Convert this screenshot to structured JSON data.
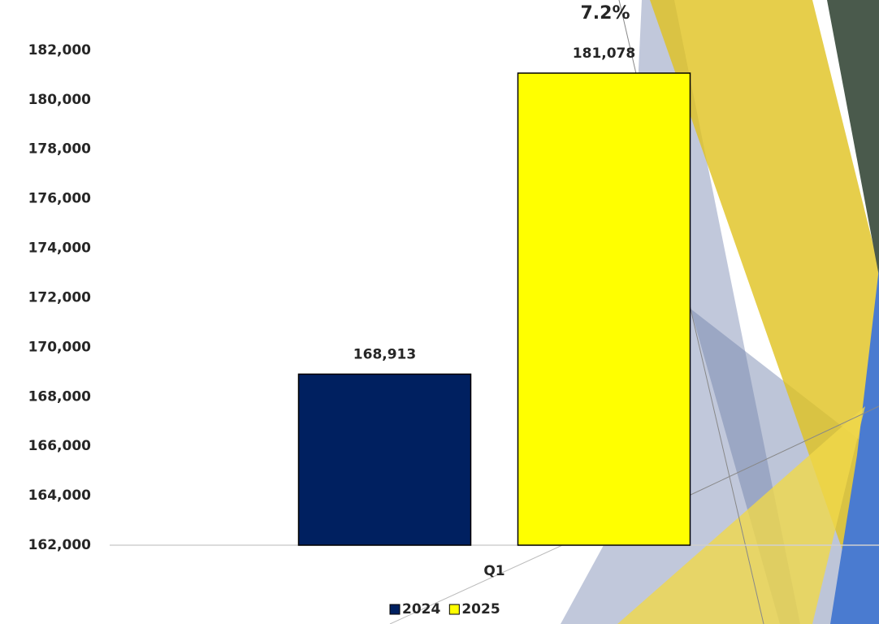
{
  "chart_data": {
    "type": "bar",
    "annotation": "7.2%",
    "categories": [
      "Q1"
    ],
    "series": [
      {
        "name": "2024",
        "color": "#002060",
        "values": [
          168913
        ],
        "value_labels": [
          "168,913"
        ]
      },
      {
        "name": "2025",
        "color": "#ffff00",
        "values": [
          181078
        ],
        "value_labels": [
          "181,078"
        ]
      }
    ],
    "ylim": [
      162000,
      184000
    ],
    "yticks": [
      {
        "value": 162000,
        "label": "162,000"
      },
      {
        "value": 164000,
        "label": "164,000"
      },
      {
        "value": 166000,
        "label": "166,000"
      },
      {
        "value": 168000,
        "label": "168,000"
      },
      {
        "value": 170000,
        "label": "170,000"
      },
      {
        "value": 172000,
        "label": "172,000"
      },
      {
        "value": 174000,
        "label": "174,000"
      },
      {
        "value": 176000,
        "label": "176,000"
      },
      {
        "value": 178000,
        "label": "178,000"
      },
      {
        "value": 180000,
        "label": "180,000"
      },
      {
        "value": 182000,
        "label": "182,000"
      }
    ],
    "grid": false,
    "legend": "bottom"
  }
}
